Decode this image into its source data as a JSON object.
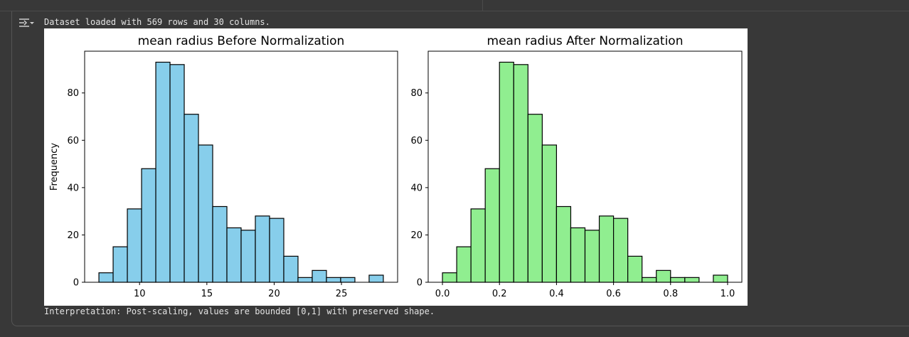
{
  "log": {
    "message": "Dataset loaded with 569 rows and 30 columns."
  },
  "interpretation": "Interpretation: Post-scaling, values are bounded [0,1] with preserved shape.",
  "chart_data": [
    {
      "type": "bar",
      "title": "mean radius Before Normalization",
      "xlabel": "",
      "ylabel": "Frequency",
      "color": "#87ceeb",
      "edgecolor": "#000000",
      "bin_start": 6.98,
      "bin_width": 1.0565,
      "values": [
        4,
        15,
        31,
        48,
        93,
        92,
        71,
        58,
        32,
        23,
        22,
        28,
        27,
        11,
        2,
        5,
        2,
        2,
        0,
        3
      ],
      "xlim": [
        5.92,
        29.17
      ],
      "ylim": [
        0,
        97.65
      ],
      "xticks": [
        10,
        15,
        20,
        25
      ],
      "xtick_labels": [
        "10",
        "15",
        "20",
        "25"
      ],
      "yticks": [
        0,
        20,
        40,
        60,
        80
      ],
      "ytick_labels": [
        "0",
        "20",
        "40",
        "60",
        "80"
      ]
    },
    {
      "type": "bar",
      "title": "mean radius After Normalization",
      "xlabel": "",
      "ylabel": "",
      "color": "#90ee90",
      "edgecolor": "#000000",
      "bin_start": 0,
      "bin_width": 0.05,
      "values": [
        4,
        15,
        31,
        48,
        93,
        92,
        71,
        58,
        32,
        23,
        22,
        28,
        27,
        11,
        2,
        5,
        2,
        2,
        0,
        3
      ],
      "xlim": [
        -0.05,
        1.05
      ],
      "ylim": [
        0,
        97.65
      ],
      "xticks": [
        0.0,
        0.2,
        0.4,
        0.6,
        0.8,
        1.0
      ],
      "xtick_labels": [
        "0.0",
        "0.2",
        "0.4",
        "0.6",
        "0.8",
        "1.0"
      ],
      "yticks": [
        0,
        20,
        40,
        60,
        80
      ],
      "ytick_labels": [
        "0",
        "20",
        "40",
        "60",
        "80"
      ]
    }
  ]
}
